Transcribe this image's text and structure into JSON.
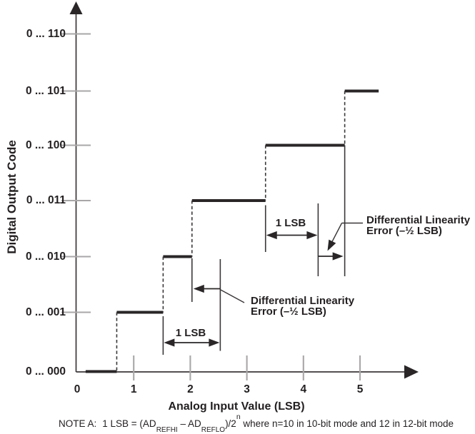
{
  "colors": {
    "background": "#ffffff",
    "ink": "#231f20",
    "line_dark": "#2a2627",
    "line_mid": "#3b3738",
    "tick_gray": "#a9a7a8"
  },
  "y_axis": {
    "title": "Digital Output Code",
    "labels": [
      "0 ... 000",
      "0 ... 001",
      "0 ... 010",
      "0 ... 011",
      "0 ... 100",
      "0 ... 101",
      "0 ... 110"
    ]
  },
  "x_axis": {
    "title": "Analog Input Value (LSB)",
    "labels": [
      "0",
      "1",
      "2",
      "3",
      "4",
      "5"
    ]
  },
  "annotations": {
    "one_lsb": "1 LSB",
    "dle_line1": "Differential Linearity",
    "dle_line2": "Error (–½ LSB)"
  },
  "note": {
    "prefix": "NOTE A:",
    "t1": "1 LSB = (AD",
    "sub1": "REFHI",
    "t2": " – AD",
    "sub2": "REFLO",
    "t3": ")/2",
    "sup1": "n",
    "t4": " where n=10 in 10-bit mode and 12 in 12-bit mode"
  },
  "chart_data": {
    "type": "step",
    "title": "ADC transfer characteristic showing differential linearity error",
    "xlabel": "Analog Input Value (LSB)",
    "ylabel": "Digital Output Code",
    "xlim": [
      0,
      5.8
    ],
    "x_tick_values": [
      0,
      1,
      2,
      3,
      4,
      5
    ],
    "y_codes": [
      "0 ... 000",
      "0 ... 001",
      "0 ... 010",
      "0 ... 011",
      "0 ... 100",
      "0 ... 101",
      "0 ... 110"
    ],
    "steps": [
      {
        "code": "0 ... 000",
        "level": 0,
        "x_start": 0.15,
        "x_end": 0.7
      },
      {
        "code": "0 ... 001",
        "level": 1,
        "x_start": 0.7,
        "x_end": 1.52
      },
      {
        "code": "0 ... 010",
        "level": 2,
        "x_start": 1.52,
        "x_end": 2.03
      },
      {
        "code": "0 ... 011",
        "level": 3,
        "x_start": 2.03,
        "x_end": 3.33
      },
      {
        "code": "0 ... 100",
        "level": 4,
        "x_start": 3.33,
        "x_end": 4.73
      },
      {
        "code": "0 ... 101",
        "level": 5,
        "x_start": 4.73,
        "x_end": 5.33
      }
    ],
    "lower_annotation": {
      "one_lsb_span": [
        1.52,
        2.53
      ],
      "actual_transition": 2.03,
      "error_lsb": -0.5
    },
    "upper_annotation": {
      "one_lsb_span": [
        3.33,
        4.26
      ],
      "actual_transition": 4.73,
      "error_lsb": -0.5
    }
  }
}
